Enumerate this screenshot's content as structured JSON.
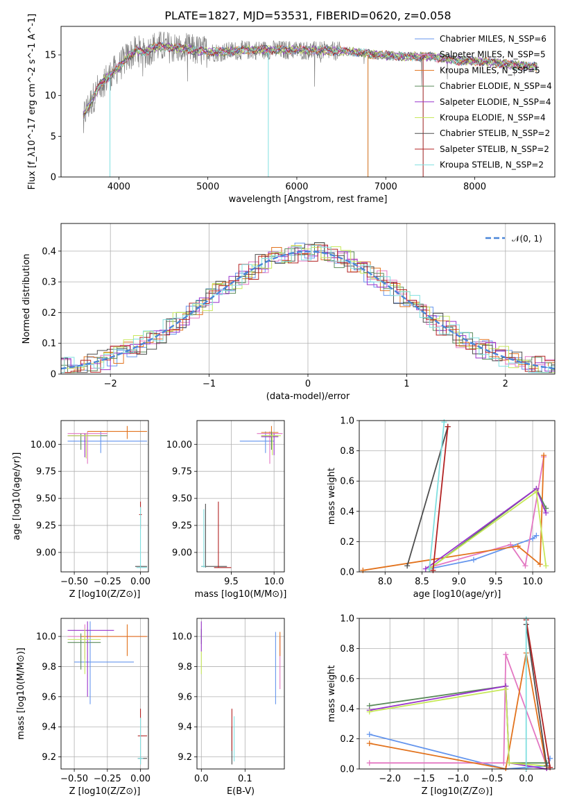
{
  "colors": {
    "Chabrier MILES": "#6495ed",
    "Salpeter MILES": "#e377c2",
    "Kroupa MILES": "#e2721c",
    "Chabrier ELODIE": "#5a8a5a",
    "Salpeter ELODIE": "#9932cc",
    "Kroupa ELODIE": "#c7e85a",
    "Chabrier STELIB": "#4d4d4d",
    "Salpeter STELIB": "#b22222",
    "Kroupa STELIB": "#7fdfe0"
  },
  "chart_data": [
    {
      "id": "spectrum",
      "type": "line",
      "title": "PLATE=1827, MJD=53531, FIBERID=0620, z=0.058",
      "xlabel": "wavelength [Angstrom, rest frame]",
      "ylabel": "Flux [f_λ10^-17 erg cm^-2 s^-1 A^-1]",
      "xlim": [
        3350,
        8900
      ],
      "ylim": [
        0,
        18.5
      ],
      "xticks": [
        4000,
        5000,
        6000,
        7000,
        8000
      ],
      "yticks": [
        0,
        5,
        10,
        15
      ],
      "grid": false,
      "legend_position": "top-right",
      "legend": [
        {
          "label": "Chabrier MILES, N_SSP=6",
          "color_key": "Chabrier MILES"
        },
        {
          "label": "Salpeter MILES, N_SSP=5",
          "color_key": "Salpeter MILES"
        },
        {
          "label": "Kroupa MILES, N_SSP=5",
          "color_key": "Kroupa MILES"
        },
        {
          "label": "Chabrier ELODIE, N_SSP=4",
          "color_key": "Chabrier ELODIE"
        },
        {
          "label": "Salpeter ELODIE, N_SSP=4",
          "color_key": "Salpeter ELODIE"
        },
        {
          "label": "Kroupa ELODIE, N_SSP=4",
          "color_key": "Kroupa ELODIE"
        },
        {
          "label": "Chabrier STELIB, N_SSP=2",
          "color_key": "Chabrier STELIB"
        },
        {
          "label": "Salpeter STELIB, N_SSP=2",
          "color_key": "Salpeter STELIB"
        },
        {
          "label": "Kroupa STELIB, N_SSP=2",
          "color_key": "Kroupa STELIB"
        }
      ],
      "continuum_points": [
        [
          3600,
          7.5
        ],
        [
          3700,
          9.5
        ],
        [
          3800,
          11.5
        ],
        [
          3900,
          12.5
        ],
        [
          4000,
          13.5
        ],
        [
          4100,
          14.8
        ],
        [
          4200,
          15.5
        ],
        [
          4300,
          15.3
        ],
        [
          4400,
          16.0
        ],
        [
          4500,
          16.0
        ],
        [
          4700,
          15.8
        ],
        [
          4900,
          15.5
        ],
        [
          5100,
          15.3
        ],
        [
          5300,
          15.5
        ],
        [
          5500,
          15.6
        ],
        [
          5800,
          15.6
        ],
        [
          6000,
          15.6
        ],
        [
          6300,
          15.5
        ],
        [
          6600,
          15.4
        ],
        [
          6900,
          15.0
        ],
        [
          7200,
          14.8
        ],
        [
          7500,
          14.8
        ],
        [
          7800,
          14.3
        ],
        [
          8100,
          14.2
        ],
        [
          8400,
          13.8
        ],
        [
          8700,
          13.5
        ]
      ],
      "dips": [
        [
          3900,
          0
        ],
        [
          5680,
          0
        ],
        [
          6800,
          0
        ],
        [
          7420,
          0
        ]
      ]
    },
    {
      "id": "residuals",
      "type": "histogram",
      "xlabel": "(data-model)/error",
      "ylabel": "Normed distribution",
      "xlim": [
        -2.5,
        2.5
      ],
      "ylim": [
        0,
        0.49
      ],
      "xticks": [
        -2,
        -1,
        0,
        1,
        2
      ],
      "yticks": [
        0.0,
        0.1,
        0.2,
        0.3,
        0.4
      ],
      "grid": true,
      "legend_position": "top-right",
      "legend": [
        {
          "label": "𝒩(0, 1)",
          "color": "#4a86d8",
          "style": "dashed"
        }
      ]
    },
    {
      "id": "age_vs_Z",
      "type": "scatter",
      "xlabel": "Z [log10(Z/Z⊙)]",
      "ylabel": "age  [log10(age/yr)]",
      "xlim": [
        -0.6,
        0.06
      ],
      "ylim": [
        8.82,
        10.22
      ],
      "xticks": [
        -0.5,
        -0.25,
        0.0
      ],
      "xticklabels": [
        "−0.50",
        "−0.25",
        "0.00"
      ],
      "yticks": [
        9.0,
        9.25,
        9.5,
        9.75,
        10.0
      ],
      "yticklabels": [
        "9.00",
        "9.25",
        "9.50",
        "9.75",
        "10.00"
      ],
      "grid": true
    },
    {
      "id": "age_vs_mass",
      "type": "scatter",
      "xlabel": "mass [log10(M/M⊙)]",
      "ylabel": "",
      "xlim": [
        9.1,
        10.12
      ],
      "ylim": [
        8.82,
        10.22
      ],
      "xticks": [
        9.5,
        10.0
      ],
      "xticklabels": [
        "9.5",
        "10.0"
      ],
      "yticks": [
        9.0,
        9.25,
        9.5,
        9.75,
        10.0
      ],
      "yticklabels": [
        "9.00",
        "9.25",
        "9.50",
        "9.75",
        "10.00"
      ],
      "grid": true
    },
    {
      "id": "weight_vs_age",
      "type": "line",
      "xlabel": "age  [log10(age/yr)]",
      "ylabel": "mass weight",
      "xlim": [
        7.65,
        10.3
      ],
      "ylim": [
        0,
        1.0
      ],
      "xticks": [
        8.0,
        8.5,
        9.0,
        9.5,
        10.0
      ],
      "xticklabels": [
        "8.0",
        "8.5",
        "9.0",
        "9.5",
        "10.0"
      ],
      "yticks": [
        0.0,
        0.2,
        0.4,
        0.6,
        0.8,
        1.0
      ],
      "yticklabels": [
        "0.0",
        "0.2",
        "0.4",
        "0.6",
        "0.8",
        "1.0"
      ],
      "grid": true,
      "series": [
        {
          "color_key": "Chabrier MILES",
          "x": [
            8.6,
            9.2,
            10.0,
            10.05
          ],
          "y": [
            0.02,
            0.08,
            0.22,
            0.24
          ]
        },
        {
          "color_key": "Salpeter MILES",
          "x": [
            8.6,
            9.7,
            9.9,
            10.15
          ],
          "y": [
            0.03,
            0.18,
            0.04,
            0.76
          ]
        },
        {
          "color_key": "Kroupa MILES",
          "x": [
            7.7,
            9.8,
            10.1,
            10.15
          ],
          "y": [
            0.01,
            0.17,
            0.05,
            0.77
          ]
        },
        {
          "color_key": "Chabrier ELODIE",
          "x": [
            8.6,
            10.05,
            10.18
          ],
          "y": [
            0.02,
            0.55,
            0.42
          ]
        },
        {
          "color_key": "Salpeter ELODIE",
          "x": [
            8.55,
            10.05,
            10.18
          ],
          "y": [
            0.02,
            0.55,
            0.39
          ]
        },
        {
          "color_key": "Kroupa ELODIE",
          "x": [
            8.6,
            10.05,
            10.18
          ],
          "y": [
            0.02,
            0.53,
            0.04
          ]
        },
        {
          "color_key": "Chabrier STELIB",
          "x": [
            8.3,
            8.85
          ],
          "y": [
            0.04,
            0.96
          ]
        },
        {
          "color_key": "Salpeter STELIB",
          "x": [
            8.65,
            8.85
          ],
          "y": [
            0.01,
            0.96
          ]
        },
        {
          "color_key": "Kroupa STELIB",
          "x": [
            8.6,
            8.8
          ],
          "y": [
            0.02,
            0.99
          ]
        }
      ]
    },
    {
      "id": "mass_vs_Z",
      "type": "scatter",
      "xlabel": "Z [log10(Z/Z⊙)]",
      "ylabel": "mass [log10(M/M⊙)]",
      "xlim": [
        -0.6,
        0.06
      ],
      "ylim": [
        9.12,
        10.12
      ],
      "xticks": [
        -0.5,
        -0.25,
        0.0
      ],
      "xticklabels": [
        "−0.50",
        "−0.25",
        "0.00"
      ],
      "yticks": [
        9.2,
        9.4,
        9.6,
        9.8,
        10.0
      ],
      "yticklabels": [
        "9.2",
        "9.4",
        "9.6",
        "9.8",
        "10.0"
      ],
      "grid": true
    },
    {
      "id": "mass_vs_ebv",
      "type": "scatter",
      "xlabel": "E(B-V)",
      "ylabel": "",
      "xlim": [
        -0.01,
        0.19
      ],
      "ylim": [
        9.12,
        10.12
      ],
      "xticks": [
        0.0,
        0.1
      ],
      "xticklabels": [
        "0.0",
        "0.1"
      ],
      "yticks": [
        9.2,
        9.4,
        9.6,
        9.8,
        10.0
      ],
      "yticklabels": [
        "9.2",
        "9.4",
        "9.6",
        "9.8",
        "10.0"
      ],
      "grid": true
    },
    {
      "id": "weight_vs_Z",
      "type": "line",
      "xlabel": "Z [log10(Z/Z⊙)]",
      "ylabel": "mass weight",
      "xlim": [
        -2.45,
        0.42
      ],
      "ylim": [
        0,
        1.0
      ],
      "xticks": [
        -2.0,
        -1.5,
        -1.0,
        -0.5,
        0.0
      ],
      "xticklabels": [
        "−2.0",
        "−1.5",
        "−1.0",
        "−0.5",
        "0.0"
      ],
      "yticks": [
        0.0,
        0.2,
        0.4,
        0.6,
        0.8,
        1.0
      ],
      "yticklabels": [
        "0.0",
        "0.2",
        "0.4",
        "0.6",
        "0.8",
        "1.0"
      ],
      "grid": true,
      "series": [
        {
          "color_key": "Chabrier MILES",
          "x": [
            -2.3,
            -0.3,
            0.3,
            0.35
          ],
          "y": [
            0.23,
            0.0,
            0.02,
            0.07
          ]
        },
        {
          "color_key": "Salpeter MILES",
          "x": [
            -2.3,
            -0.33,
            -0.3,
            0.3
          ],
          "y": [
            0.04,
            0.04,
            0.76,
            0.02
          ]
        },
        {
          "color_key": "Kroupa MILES",
          "x": [
            -2.3,
            -0.3,
            0.0,
            0.3
          ],
          "y": [
            0.17,
            0.0,
            0.77,
            0.0
          ]
        },
        {
          "color_key": "Chabrier ELODIE",
          "x": [
            -2.3,
            -0.3,
            -0.25,
            0.3
          ],
          "y": [
            0.42,
            0.55,
            0.04,
            0.04
          ]
        },
        {
          "color_key": "Salpeter ELODIE",
          "x": [
            -2.3,
            -0.3,
            -0.25,
            0.3
          ],
          "y": [
            0.39,
            0.55,
            0.04,
            0.0
          ]
        },
        {
          "color_key": "Kroupa ELODIE",
          "x": [
            -2.3,
            -0.3,
            -0.25,
            0.3
          ],
          "y": [
            0.38,
            0.53,
            0.04,
            0.02
          ]
        },
        {
          "color_key": "Chabrier STELIB",
          "x": [
            0.0,
            0.3
          ],
          "y": [
            0.96,
            0.02
          ]
        },
        {
          "color_key": "Salpeter STELIB",
          "x": [
            0.0,
            0.35
          ],
          "y": [
            0.99,
            0.01
          ]
        },
        {
          "color_key": "Kroupa STELIB",
          "x": [
            0.0,
            0.0
          ],
          "y": [
            1.0,
            0.0
          ]
        }
      ]
    }
  ],
  "errorbars": {
    "age_vs_Z": [
      {
        "color_key": "Chabrier MILES",
        "x": -0.3,
        "y": 10.03,
        "xe": [
          -0.55,
          0.05
        ],
        "ye": [
          9.92,
          10.12
        ]
      },
      {
        "color_key": "Salpeter MILES",
        "x": -0.4,
        "y": 10.1,
        "xe": [
          -0.55,
          -0.25
        ],
        "ye": [
          9.82,
          10.12
        ]
      },
      {
        "color_key": "Kroupa MILES",
        "x": -0.1,
        "y": 10.12,
        "xe": [
          -0.4,
          0.05
        ],
        "ye": [
          10.05,
          10.17
        ]
      },
      {
        "color_key": "Chabrier ELODIE",
        "x": -0.45,
        "y": 10.08,
        "xe": [
          -0.55,
          -0.25
        ],
        "ye": [
          9.95,
          10.1
        ]
      },
      {
        "color_key": "Salpeter ELODIE",
        "x": -0.42,
        "y": 10.08,
        "xe": [
          -0.55,
          -0.3
        ],
        "ye": [
          9.88,
          10.1
        ]
      },
      {
        "color_key": "Kroupa ELODIE",
        "x": -0.41,
        "y": 10.08,
        "xe": [
          -0.55,
          -0.3
        ],
        "ye": [
          9.87,
          10.1
        ]
      },
      {
        "color_key": "Chabrier STELIB",
        "x": 0.0,
        "y": 8.87,
        "xe": [
          -0.04,
          0.05
        ],
        "ye": [
          8.86,
          8.88
        ]
      },
      {
        "color_key": "Salpeter STELIB",
        "x": 0.0,
        "y": 9.35,
        "xe": [
          -0.01,
          0.01
        ],
        "ye": [
          9.22,
          9.47
        ]
      },
      {
        "color_key": "Kroupa STELIB",
        "x": 0.0,
        "y": 8.86,
        "xe": [
          -0.03,
          0.05
        ],
        "ye": [
          8.86,
          9.42
        ]
      }
    ],
    "age_vs_mass": [
      {
        "color_key": "Chabrier MILES",
        "x": 9.9,
        "y": 10.03,
        "xe": [
          9.6,
          10.0
        ],
        "ye": [
          9.92,
          10.12
        ]
      },
      {
        "color_key": "Salpeter MILES",
        "x": 9.95,
        "y": 10.1,
        "xe": [
          9.8,
          10.1
        ],
        "ye": [
          9.82,
          10.12
        ]
      },
      {
        "color_key": "Kroupa MILES",
        "x": 9.97,
        "y": 10.11,
        "xe": [
          9.85,
          10.05
        ],
        "ye": [
          10.05,
          10.17
        ]
      },
      {
        "color_key": "Chabrier ELODIE",
        "x": 9.97,
        "y": 10.08,
        "xe": [
          9.85,
          10.05
        ],
        "ye": [
          9.95,
          10.12
        ]
      },
      {
        "color_key": "Salpeter ELODIE",
        "x": 10.0,
        "y": 10.07,
        "xe": [
          9.85,
          10.05
        ],
        "ye": [
          9.9,
          10.1
        ]
      },
      {
        "color_key": "Kroupa ELODIE",
        "x": 9.98,
        "y": 10.08,
        "xe": [
          9.85,
          10.08
        ],
        "ye": [
          9.9,
          10.1
        ]
      },
      {
        "color_key": "Chabrier STELIB",
        "x": 9.2,
        "y": 8.87,
        "xe": [
          9.15,
          9.45
        ],
        "ye": [
          8.86,
          9.45
        ]
      },
      {
        "color_key": "Salpeter STELIB",
        "x": 9.35,
        "y": 8.86,
        "xe": [
          9.3,
          9.5
        ],
        "ye": [
          8.86,
          9.47
        ]
      },
      {
        "color_key": "Kroupa STELIB",
        "x": 9.18,
        "y": 8.87,
        "xe": [
          9.15,
          9.2
        ],
        "ye": [
          8.86,
          9.4
        ]
      }
    ],
    "mass_vs_Z": [
      {
        "color_key": "Chabrier MILES",
        "x": -0.38,
        "y": 9.83,
        "xe": [
          -0.5,
          -0.05
        ],
        "ye": [
          9.55,
          10.1
        ]
      },
      {
        "color_key": "Salpeter MILES",
        "x": -0.42,
        "y": 10.0,
        "xe": [
          -0.55,
          0.05
        ],
        "ye": [
          9.85,
          10.08
        ]
      },
      {
        "color_key": "Kroupa MILES",
        "x": -0.1,
        "y": 10.0,
        "xe": [
          -0.45,
          0.05
        ],
        "ye": [
          9.87,
          10.08
        ]
      },
      {
        "color_key": "Chabrier ELODIE",
        "x": -0.45,
        "y": 9.96,
        "xe": [
          -0.55,
          -0.3
        ],
        "ye": [
          9.78,
          10.02
        ]
      },
      {
        "color_key": "Salpeter ELODIE",
        "x": -0.4,
        "y": 10.04,
        "xe": [
          -0.55,
          -0.2
        ],
        "ye": [
          9.6,
          10.1
        ]
      },
      {
        "color_key": "Kroupa ELODIE",
        "x": -0.42,
        "y": 9.98,
        "xe": [
          -0.55,
          -0.3
        ],
        "ye": [
          9.75,
          10.05
        ]
      },
      {
        "color_key": "Chabrier STELIB",
        "x": 0.0,
        "y": 9.19,
        "xe": [
          -0.02,
          0.05
        ],
        "ye": [
          9.15,
          9.24
        ]
      },
      {
        "color_key": "Salpeter STELIB",
        "x": 0.0,
        "y": 9.34,
        "xe": [
          -0.02,
          0.05
        ],
        "ye": [
          9.24,
          9.52
        ]
      },
      {
        "color_key": "Kroupa STELIB",
        "x": 0.0,
        "y": 9.19,
        "xe": [
          -0.02,
          0.02
        ],
        "ye": [
          9.15,
          9.46
        ]
      }
    ],
    "mass_vs_ebv": [
      {
        "color_key": "Chabrier MILES",
        "x": 0.17,
        "y": 9.8,
        "xe": [
          0.17,
          0.17
        ],
        "ye": [
          9.55,
          10.03
        ]
      },
      {
        "color_key": "Salpeter MILES",
        "x": 0.18,
        "y": 9.9,
        "xe": [
          0.18,
          0.18
        ],
        "ye": [
          9.65,
          10.0
        ]
      },
      {
        "color_key": "Kroupa MILES",
        "x": 0.18,
        "y": 9.95,
        "xe": [
          0.18,
          0.18
        ],
        "ye": [
          9.87,
          10.03
        ]
      },
      {
        "color_key": "Chabrier ELODIE",
        "x": 0.0,
        "y": 10.0,
        "xe": [
          0.0,
          0.0
        ],
        "ye": [
          9.95,
          10.05
        ]
      },
      {
        "color_key": "Salpeter ELODIE",
        "x": 0.0,
        "y": 10.0,
        "xe": [
          0.0,
          0.0
        ],
        "ye": [
          9.9,
          10.1
        ]
      },
      {
        "color_key": "Kroupa ELODIE",
        "x": 0.0,
        "y": 9.8,
        "xe": [
          0.0,
          0.0
        ],
        "ye": [
          9.75,
          9.9
        ]
      },
      {
        "color_key": "Chabrier STELIB",
        "x": 0.07,
        "y": 9.3,
        "xe": [
          0.07,
          0.07
        ],
        "ye": [
          9.15,
          9.4
        ]
      },
      {
        "color_key": "Salpeter STELIB",
        "x": 0.07,
        "y": 9.35,
        "xe": [
          0.07,
          0.07
        ],
        "ye": [
          9.24,
          9.52
        ]
      },
      {
        "color_key": "Kroupa STELIB",
        "x": 0.075,
        "y": 9.3,
        "xe": [
          0.075,
          0.075
        ],
        "ye": [
          9.17,
          9.47
        ]
      }
    ]
  }
}
